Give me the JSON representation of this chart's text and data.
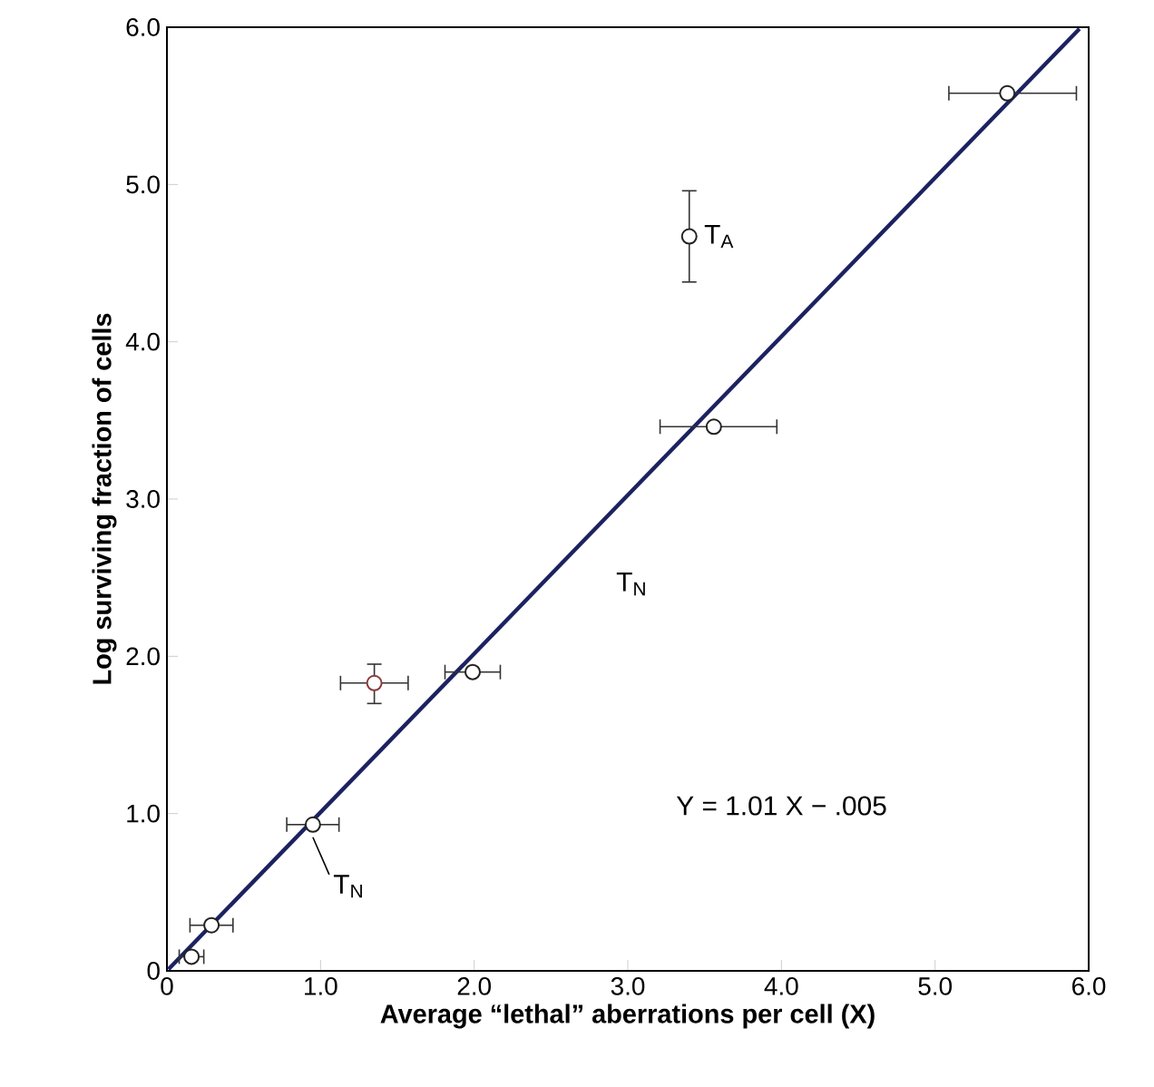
{
  "chart_data": {
    "type": "scatter",
    "xlabel": "Average “lethal” aberrations per cell (X)",
    "ylabel": "Log surviving fraction of cells",
    "xlim": [
      0,
      6
    ],
    "ylim": [
      0,
      6
    ],
    "xticks": [
      0,
      {
        "value": 1,
        "label": "1.0"
      },
      {
        "value": 2,
        "label": "2.0"
      },
      {
        "value": 3,
        "label": "3.0"
      },
      {
        "value": 4,
        "label": "4.0"
      },
      {
        "value": 5,
        "label": "5.0"
      },
      {
        "value": 6,
        "label": "6.0"
      }
    ],
    "yticks": [
      0,
      {
        "value": 1,
        "label": "1.0"
      },
      {
        "value": 2,
        "label": "2.0"
      },
      {
        "value": 3,
        "label": "3.0"
      },
      {
        "value": 4,
        "label": "4.0"
      },
      {
        "value": 5,
        "label": "5.0"
      },
      {
        "value": 6,
        "label": "6.0"
      }
    ],
    "series": [
      {
        "type": "line",
        "color": "#1c2260",
        "marker": "none",
        "x": [
          0.01,
          5.94
        ],
        "values": [
          0.01,
          5.99
        ]
      },
      {
        "type": "scatter",
        "color": "#222222",
        "marker": "circle",
        "x": [
          0.16,
          0.29,
          0.95,
          1.99,
          3.56,
          5.47
        ],
        "values": [
          0.09,
          0.29,
          0.93,
          1.9,
          3.46,
          5.58
        ],
        "xerrors": [
          0.08,
          0.14,
          0.17,
          0.18,
          [
            3.21,
            3.97
          ],
          [
            5.09,
            5.92
          ]
        ]
      },
      {
        "type": "scatter",
        "color": "#8b3a3a",
        "marker": "circle",
        "x": [
          1.35
        ],
        "values": [
          1.83
        ],
        "xerrors": [
          0.22
        ],
        "errors": [
          [
            1.7,
            1.95
          ]
        ]
      },
      {
        "type": "scatter",
        "color": "#222222",
        "marker": "circle",
        "x": [
          3.4
        ],
        "values": [
          4.67
        ],
        "errors": [
          [
            4.38,
            4.96
          ]
        ]
      }
    ],
    "annotations": [
      {
        "text": "T$_{N}$",
        "x": 0.95,
        "y": 0.93
      },
      "T$_{N}$",
      {
        "text": "T$_{A}$",
        "x": 3.4,
        "y": 4.67
      },
      "Y = 1.01 X − .005"
    ]
  }
}
